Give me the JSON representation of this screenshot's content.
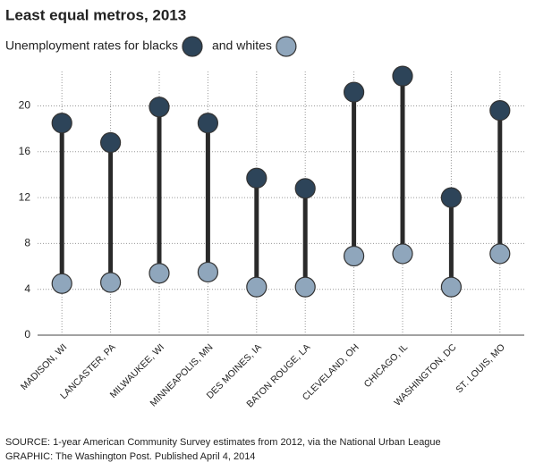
{
  "chart_data": {
    "type": "dumbbell",
    "title": "Least equal metros, 2013",
    "categories": [
      "MADISON, WI",
      "LANCASTER, PA",
      "MILWAUKEE, WI",
      "MINNEAPOLIS, MN",
      "DES MOINES, IA",
      "BATON ROUGE, LA",
      "CLEVELAND, OH",
      "CHICAGO, IL",
      "WASHINGTON, DC",
      "ST. LOUIS, MO"
    ],
    "series": [
      {
        "name": "Unemployment rates for blacks",
        "color": "#2d4459",
        "values": [
          18.5,
          16.8,
          19.9,
          18.5,
          13.7,
          12.8,
          21.2,
          22.6,
          12.0,
          19.6
        ]
      },
      {
        "name": "and whites",
        "color": "#8fa6bc",
        "values": [
          4.5,
          4.6,
          5.4,
          5.5,
          4.2,
          4.2,
          6.9,
          7.1,
          4.2,
          7.1
        ]
      }
    ],
    "ylim": [
      0,
      23
    ],
    "yticks": [
      0,
      4,
      8,
      12,
      16,
      20
    ],
    "grid": true,
    "source": "SOURCE: 1-year American Community Survey estimates from 2012, via the National Urban League",
    "credit": "GRAPHIC: The Washington Post. Published April 4, 2014"
  }
}
